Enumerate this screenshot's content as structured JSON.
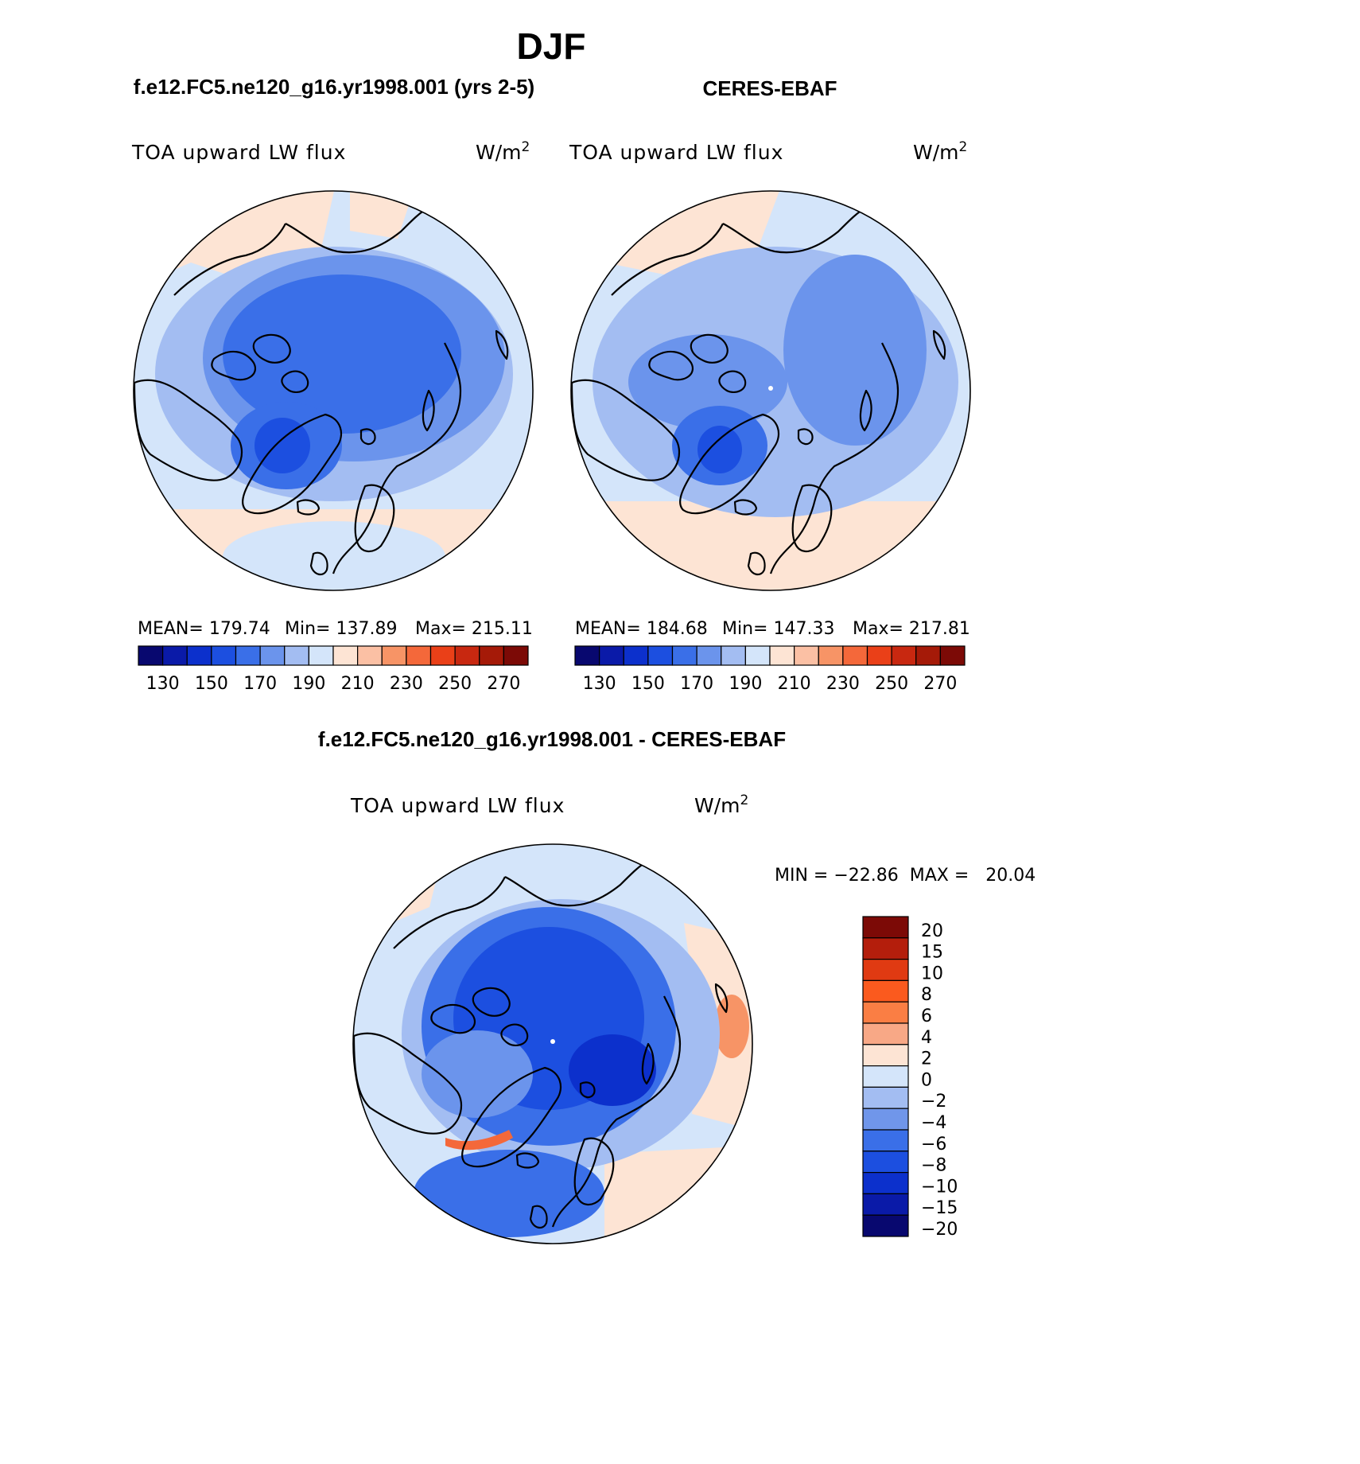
{
  "figure": {
    "title": "DJF",
    "variable_label": "TOA upward LW flux",
    "units_base": "W/m",
    "units_sup": "2"
  },
  "panels": [
    {
      "id": "model",
      "title": "f.e12.FC5.ne120_g16.yr1998.001 (yrs 2-5)",
      "stats": {
        "mean": "MEAN= 179.74",
        "min": "Min= 137.89",
        "max": "Max= 215.11"
      }
    },
    {
      "id": "obs",
      "title": "CERES-EBAF",
      "stats": {
        "mean": "MEAN= 184.68",
        "min": "Min= 147.33",
        "max": "Max= 217.81"
      }
    },
    {
      "id": "diff",
      "title": "f.e12.FC5.ne120_g16.yr1998.001 - CERES-EBAF",
      "stats": {
        "minmax": "MIN = −22.86  MAX =   20.04"
      }
    }
  ],
  "colorbars": {
    "absolute": {
      "colors": [
        "#08086f",
        "#0a1aa8",
        "#0c30cc",
        "#1c4fe0",
        "#3a6fe8",
        "#6b94ec",
        "#a3bdf2",
        "#d4e5fa",
        "#fde4d4",
        "#fbc0a4",
        "#f79466",
        "#f4683a",
        "#ea4018",
        "#c82810",
        "#a51a08",
        "#7c0a06"
      ],
      "tick_labels": [
        "130",
        "150",
        "170",
        "190",
        "210",
        "230",
        "250",
        "270"
      ]
    },
    "difference": {
      "colors": [
        "#7c0a06",
        "#b41e0c",
        "#e03a12",
        "#fb5a1e",
        "#fa7e44",
        "#f8a886",
        "#fde4d4",
        "#d4e5fa",
        "#a3bdf2",
        "#7096ea",
        "#3a6fe8",
        "#1c4fe0",
        "#0c30cc",
        "#0a1aa8",
        "#08086f"
      ],
      "tick_labels": [
        "20",
        "15",
        "10",
        "8",
        "6",
        "4",
        "2",
        "0",
        "−2",
        "−4",
        "−6",
        "−8",
        "−10",
        "−15",
        "−20"
      ]
    }
  },
  "colors": {
    "ocean_light": "#d4e5fa",
    "mid_blue": "#a3bdf2",
    "deep_blue": "#1c4fe0",
    "warm_orange": "#fde4d4"
  }
}
